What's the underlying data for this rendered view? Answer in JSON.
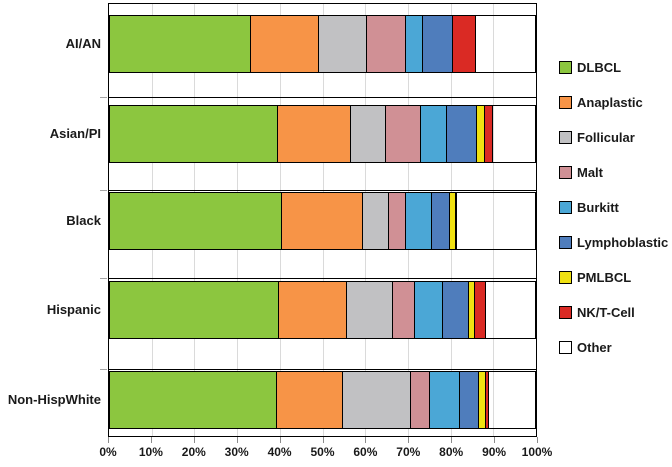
{
  "chart_data": {
    "type": "bar",
    "orientation": "horizontal",
    "stacked": true,
    "unit": "%",
    "title": "",
    "xlabel": "",
    "ylabel": "",
    "xlim": [
      0,
      100
    ],
    "gridlines": "vertical",
    "legend_position": "right",
    "categories": [
      "AI/AN",
      "Asian/PI",
      "Black",
      "Hispanic",
      "Non-HispWhite"
    ],
    "x_ticks": [
      "0%",
      "10%",
      "20%",
      "30%",
      "40%",
      "50%",
      "60%",
      "70%",
      "80%",
      "90%",
      "100%"
    ],
    "series": [
      {
        "name": "DLBCL",
        "color": "#8CC63F",
        "values": [
          32.9,
          39.0,
          40.0,
          39.4,
          38.8
        ]
      },
      {
        "name": "Anaplastic",
        "color": "#F79447",
        "values": [
          15.8,
          17.2,
          19.0,
          15.8,
          15.6
        ]
      },
      {
        "name": "Follicular",
        "color": "#C1C1C3",
        "values": [
          11.2,
          8.1,
          6.1,
          10.9,
          15.8
        ]
      },
      {
        "name": "Malt",
        "color": "#D09095",
        "values": [
          9.3,
          8.2,
          4.1,
          5.2,
          4.6
        ]
      },
      {
        "name": "Burkitt",
        "color": "#4BA7D6",
        "values": [
          3.9,
          6.1,
          5.9,
          6.4,
          6.9
        ]
      },
      {
        "name": "Lymphoblastic",
        "color": "#4F7DBC",
        "values": [
          6.9,
          7.1,
          4.3,
          6.1,
          4.4
        ]
      },
      {
        "name": "PMLBCL",
        "color": "#F0E112",
        "values": [
          0.0,
          1.8,
          1.3,
          1.4,
          1.8
        ]
      },
      {
        "name": "NK/T-Cell",
        "color": "#DA2A24",
        "values": [
          5.5,
          2.0,
          0.4,
          2.6,
          0.6
        ]
      },
      {
        "name": "Other",
        "color": "#FFFFFF",
        "values": [
          14.5,
          10.5,
          18.9,
          12.2,
          11.5
        ]
      }
    ]
  },
  "colors": {
    "axis": "#000000",
    "category_separator": "#000000",
    "gridline": "#DADADA",
    "tick": "#8C8C8C",
    "text": "#1A1A1A",
    "background": "#FFFFFF"
  }
}
